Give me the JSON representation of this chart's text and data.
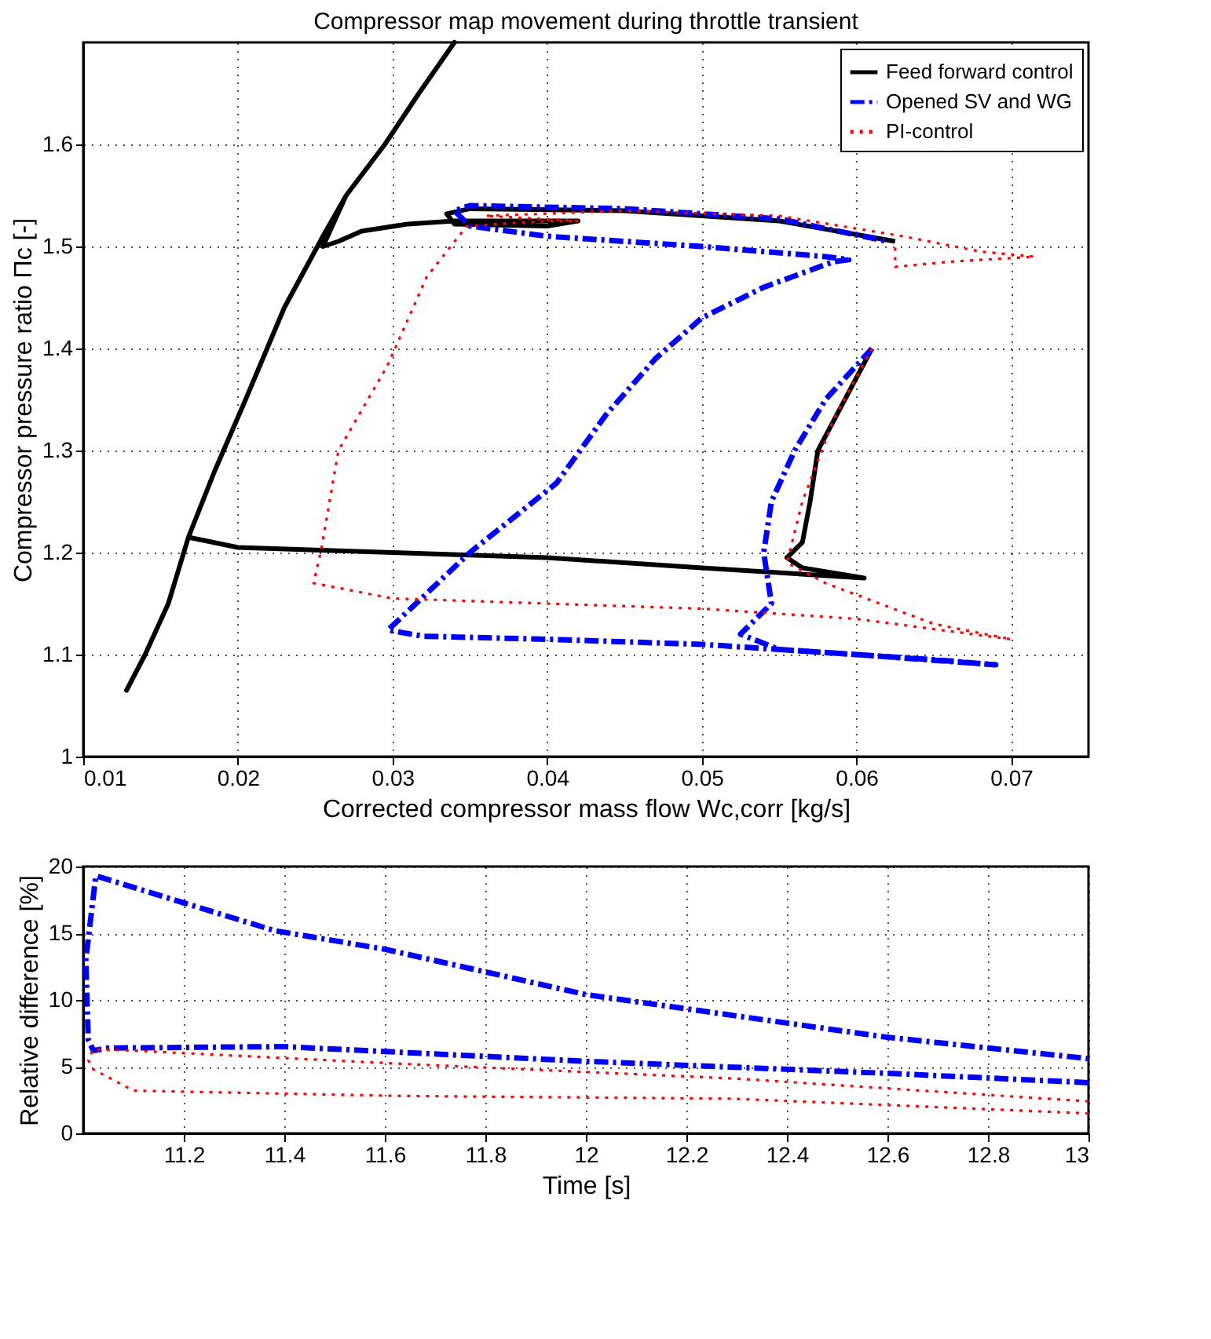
{
  "chart_data": [
    {
      "type": "line",
      "title": "Compressor map movement during throttle transient",
      "xlabel": "Corrected compressor mass flow Wc,corr [kg/s]",
      "ylabel": "Compressor pressure ratio Πc [-]",
      "xlim": [
        0.01,
        0.075
      ],
      "ylim": [
        1,
        1.7
      ],
      "xticks": [
        0.01,
        0.02,
        0.03,
        0.04,
        0.05,
        0.06,
        0.07
      ],
      "yticks": [
        1,
        1.1,
        1.2,
        1.3,
        1.4,
        1.5,
        1.6
      ],
      "grid": true,
      "legend": "top right",
      "marker": "none",
      "series": [
        {
          "name": "Feed forward control",
          "color": "#000000",
          "line_style": "solid",
          "x": [
            0.061,
            0.0575,
            0.057,
            0.0565,
            0.0555,
            0.0565,
            0.0605,
            0.05,
            0.04,
            0.03,
            0.02,
            0.0168,
            0.0155,
            0.014,
            0.0128,
            0.014,
            0.0155,
            0.0168,
            0.0185,
            0.0205,
            0.023,
            0.0255,
            0.027,
            0.0295,
            0.0317,
            0.034,
            0.0317,
            0.0295,
            0.027,
            0.0255,
            0.0265,
            0.028,
            0.031,
            0.034,
            0.042,
            0.04,
            0.034,
            0.0335,
            0.035,
            0.045,
            0.055,
            0.0625
          ],
          "values": [
            1.4,
            1.3,
            1.25,
            1.21,
            1.195,
            1.185,
            1.175,
            1.185,
            1.195,
            1.2,
            1.205,
            1.215,
            1.15,
            1.1,
            1.065,
            1.1,
            1.15,
            1.215,
            1.28,
            1.35,
            1.44,
            1.51,
            1.55,
            1.6,
            1.65,
            1.7,
            1.65,
            1.6,
            1.55,
            1.5,
            1.505,
            1.515,
            1.522,
            1.525,
            1.525,
            1.52,
            1.522,
            1.532,
            1.537,
            1.535,
            1.525,
            1.505
          ]
        },
        {
          "name": "Opened SV and WG",
          "color": "#0000ff",
          "line_style": "dashed",
          "x": [
            0.061,
            0.058,
            0.056,
            0.0545,
            0.054,
            0.0545,
            0.0525,
            0.055,
            0.065,
            0.069,
            0.06,
            0.05,
            0.04,
            0.032,
            0.0297,
            0.035,
            0.0406,
            0.0438,
            0.047,
            0.05,
            0.054,
            0.0585,
            0.0595,
            0.058,
            0.05,
            0.04,
            0.035,
            0.034,
            0.035,
            0.045,
            0.055,
            0.062
          ],
          "values": [
            1.4,
            1.35,
            1.3,
            1.25,
            1.2,
            1.15,
            1.12,
            1.105,
            1.095,
            1.09,
            1.1,
            1.11,
            1.115,
            1.118,
            1.124,
            1.2,
            1.268,
            1.335,
            1.39,
            1.43,
            1.46,
            1.485,
            1.487,
            1.49,
            1.5,
            1.51,
            1.52,
            1.535,
            1.54,
            1.537,
            1.527,
            1.505
          ]
        },
        {
          "name": "PI-control",
          "color": "#ff0000",
          "line_style": "dotted",
          "x": [
            0.061,
            0.0585,
            0.0565,
            0.0555,
            0.058,
            0.065,
            0.07,
            0.06,
            0.05,
            0.04,
            0.03,
            0.0249,
            0.0254,
            0.0265,
            0.0297,
            0.0322,
            0.0348,
            0.04,
            0.042,
            0.036,
            0.045,
            0.055,
            0.063,
            0.068,
            0.0715,
            0.066,
            0.0625,
            0.0625
          ],
          "values": [
            1.4,
            1.33,
            1.25,
            1.19,
            1.17,
            1.13,
            1.115,
            1.135,
            1.145,
            1.15,
            1.155,
            1.17,
            1.204,
            1.3,
            1.384,
            1.47,
            1.52,
            1.525,
            1.525,
            1.53,
            1.535,
            1.53,
            1.51,
            1.495,
            1.49,
            1.485,
            1.48,
            1.505
          ]
        }
      ]
    },
    {
      "type": "line",
      "xlabel": "Time [s]",
      "ylabel": "Relative difference [%]",
      "xlim": [
        11.0,
        13
      ],
      "ylim": [
        0,
        20
      ],
      "xticks": [
        11.2,
        11.4,
        11.6,
        11.8,
        12,
        12.2,
        12.4,
        12.6,
        12.8,
        13
      ],
      "yticks": [
        0,
        5,
        10,
        15,
        20
      ],
      "grid": true,
      "legend": false,
      "marker": "none",
      "series": [
        {
          "color": "#0000ff",
          "line_style": "dashed",
          "x": [
            13,
            12.6,
            12.0,
            11.4,
            11.05,
            11.02,
            11.01,
            11.005,
            11.025,
            11.38,
            11.6,
            12.0,
            12.6,
            13
          ],
          "values": [
            3.8,
            4.5,
            5.4,
            6.5,
            6.4,
            6.2,
            7,
            13,
            19.3,
            15.2,
            13.8,
            10.4,
            7.2,
            5.6
          ]
        },
        {
          "color": "#ff0000",
          "line_style": "dotted",
          "x": [
            13,
            12.3,
            11.64,
            11.1,
            11.02,
            11.01,
            11.02,
            11.1,
            11.64,
            12.29,
            13
          ],
          "values": [
            2.4,
            4.1,
            5.2,
            6.2,
            6.3,
            5.5,
            4.8,
            3.2,
            2.8,
            2.6,
            1.5
          ]
        }
      ]
    }
  ]
}
